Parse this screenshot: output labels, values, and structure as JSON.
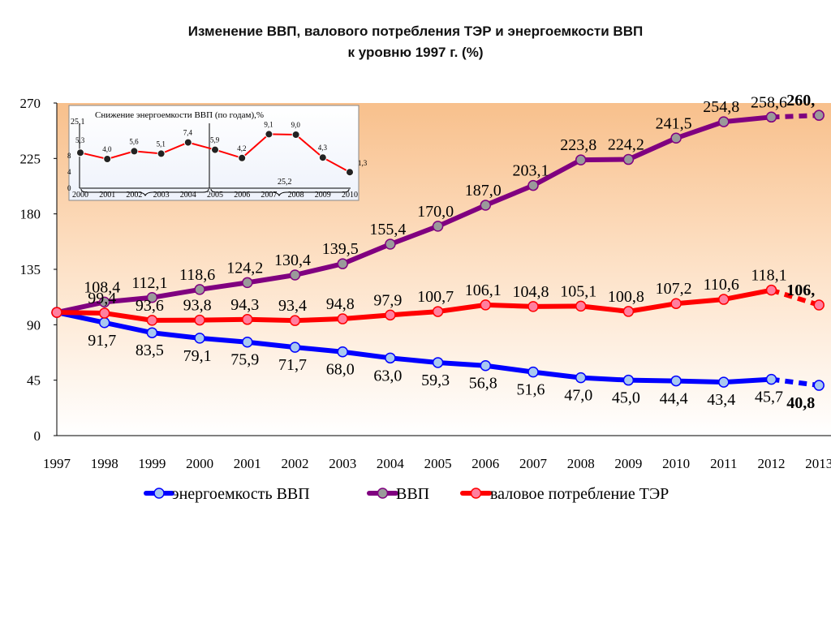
{
  "chart_data": [
    {
      "type": "line",
      "title_lines": [
        "Изменение ВВП, валового потребления ТЭР и энергоемкости ВВП",
        "к уровню 1997 г. (%)"
      ],
      "categories": [
        "1997",
        "1998",
        "1999",
        "2000",
        "2001",
        "2002",
        "2003",
        "2004",
        "2005",
        "2006",
        "2007",
        "2008",
        "2009",
        "2010",
        "2011",
        "2012",
        "2013"
      ],
      "ylim": [
        0,
        270
      ],
      "yticks": [
        0,
        45,
        90,
        135,
        180,
        225,
        270
      ],
      "grid": false,
      "legend_position": "bottom",
      "series": [
        {
          "name": "энергоемкость ВВП",
          "color": "#0000ff",
          "marker_color": "#a8c8f0",
          "values": [
            100,
            91.7,
            83.5,
            79.1,
            75.9,
            71.7,
            68.0,
            63.0,
            59.3,
            56.8,
            51.6,
            47.0,
            45.0,
            44.4,
            43.4,
            45.7,
            40.8
          ],
          "labels": [
            "",
            "91,7",
            "83,5",
            "79,1",
            "75,9",
            "71,7",
            "68,0",
            "63,0",
            "59,3",
            "56,8",
            "51,6",
            "47,0",
            "45,0",
            "44,4",
            "43,4",
            "45,7",
            "40,8"
          ]
        },
        {
          "name": "ВВП",
          "color": "#800080",
          "marker_color": "#9a9a9a",
          "values": [
            100,
            108.4,
            112.1,
            118.6,
            124.2,
            130.4,
            139.5,
            155.4,
            170.0,
            187.0,
            203.1,
            223.8,
            224.2,
            241.5,
            254.8,
            258.6,
            260.0
          ],
          "labels": [
            "",
            "108,4",
            "112,1",
            "118,6",
            "124,2",
            "130,4",
            "139,5",
            "155,4",
            "170,0",
            "187,0",
            "203,1",
            "223,8",
            "224,2",
            "241,5",
            "254,8",
            "258,6",
            "260,"
          ]
        },
        {
          "name": "валовое потребление ТЭР",
          "color": "#ff0000",
          "marker_color": "#ff7f9f",
          "values": [
            100,
            99.4,
            93.6,
            93.8,
            94.3,
            93.4,
            94.8,
            97.9,
            100.7,
            106.1,
            104.8,
            105.1,
            100.8,
            107.2,
            110.6,
            118.1,
            106.0
          ],
          "labels": [
            "",
            "99,4",
            "93,6",
            "93,8",
            "94,3",
            "93,4",
            "94,8",
            "97,9",
            "100,7",
            "106,1",
            "104,8",
            "105,1",
            "100,8",
            "107,2",
            "110,6",
            "118,1",
            "106,"
          ]
        }
      ]
    },
    {
      "type": "line",
      "title": "Снижение энергоемкости  ВВП (по годам),%",
      "categories": [
        "2000",
        "2001",
        "2002",
        "2003",
        "2004",
        "2005",
        "2006",
        "2007",
        "2008",
        "2009",
        "2010"
      ],
      "yticks": [
        0,
        4,
        8
      ],
      "series": [
        {
          "color": "#ff0000",
          "values": [
            5.3,
            4.0,
            5.6,
            5.1,
            7.4,
            5.9,
            4.2,
            9.1,
            9.0,
            4.3,
            1.3
          ],
          "labels": [
            "5,3",
            "4,0",
            "5,6",
            "5,1",
            "7,4",
            "5,9",
            "4,2",
            "9,1",
            "9,0",
            "4,3",
            "1,3"
          ]
        }
      ],
      "group_totals": [
        "25,1",
        "25,2"
      ]
    }
  ]
}
